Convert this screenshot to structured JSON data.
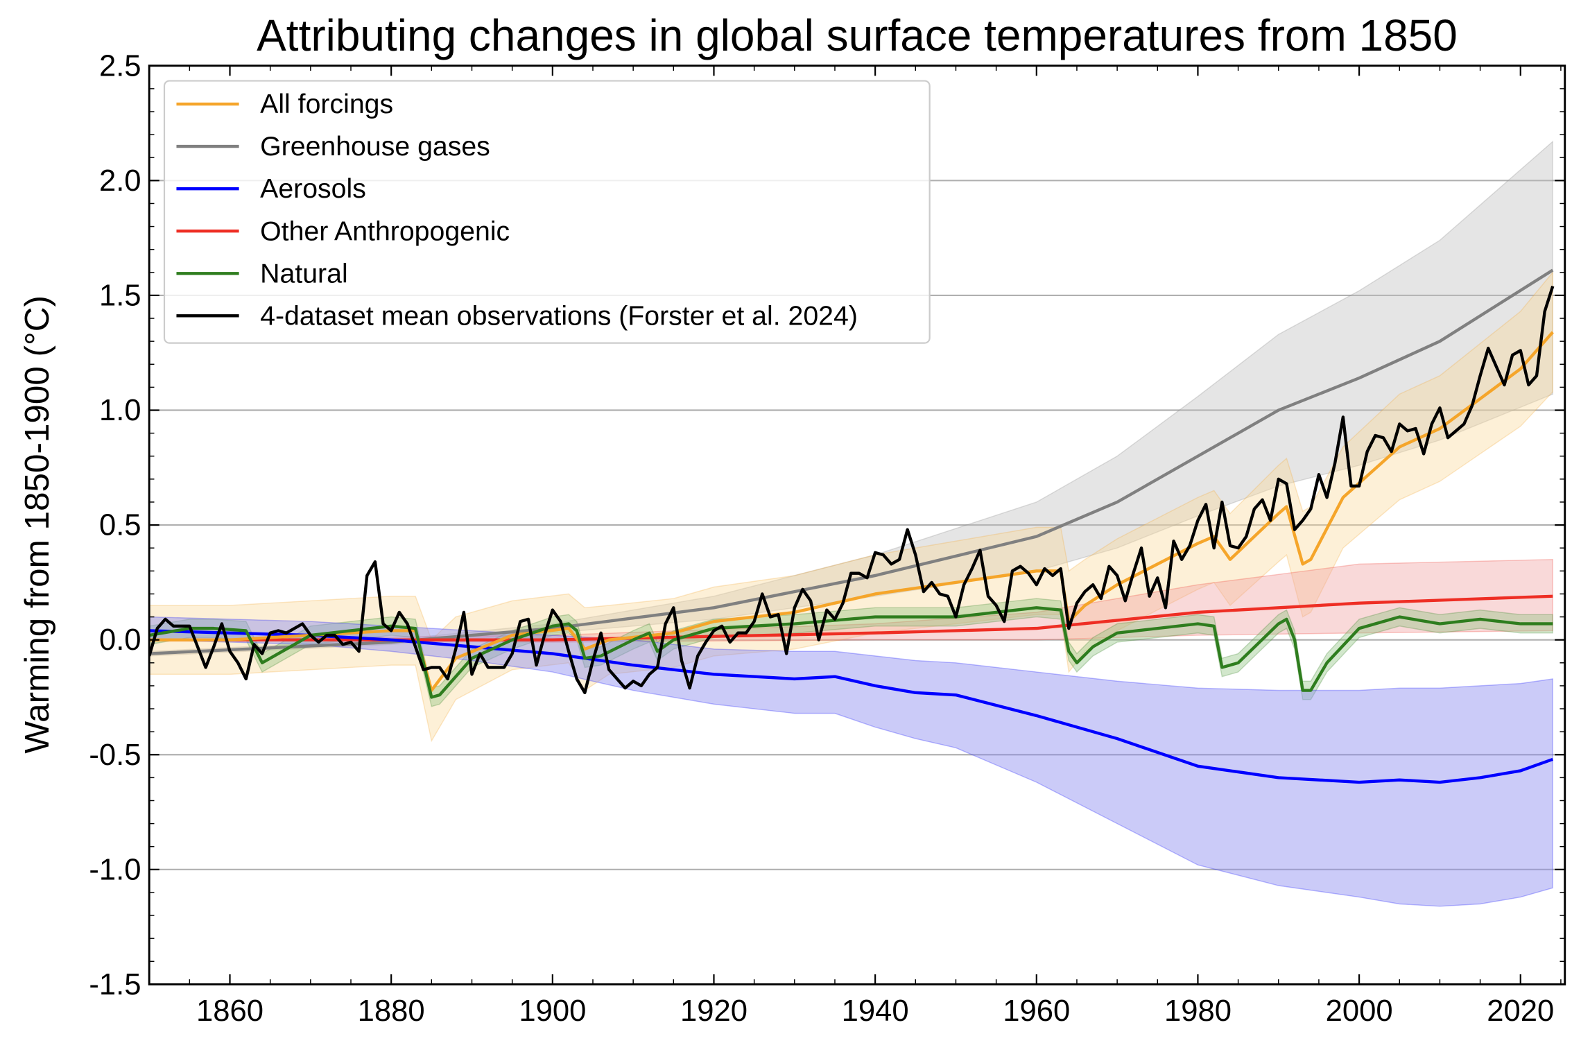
{
  "chart_data": {
    "type": "line",
    "title": "Attributing changes in global surface temperatures from 1850",
    "xlabel": "",
    "ylabel": "Warming from 1850-1900  (°C)",
    "xlim": [
      1850,
      2025.5
    ],
    "ylim": [
      -1.5,
      2.5
    ],
    "xticks": [
      1860,
      1880,
      1900,
      1920,
      1940,
      1960,
      1980,
      2000,
      2020
    ],
    "yticks": [
      "-1.5",
      "-1.0",
      "-0.5",
      "0.0",
      "0.5",
      "1.0",
      "1.5",
      "2.0",
      "2.5"
    ],
    "grid": "horizontal at major y ticks",
    "legend_position": "top-left",
    "series": [
      {
        "name": "All forcings",
        "color": "#f5a52a",
        "band_color": "#f9d99a",
        "years": [
          1850,
          1860,
          1870,
          1880,
          1883,
          1885,
          1888,
          1895,
          1902,
          1904,
          1907,
          1915,
          1920,
          1930,
          1940,
          1950,
          1960,
          1963,
          1964,
          1966,
          1970,
          1980,
          1982,
          1984,
          1990,
          1991,
          1993,
          1994,
          1998,
          2005,
          2010,
          2015,
          2020,
          2024
        ],
        "values": [
          0.0,
          0.0,
          0.02,
          0.04,
          0.04,
          -0.22,
          -0.08,
          0.02,
          0.05,
          -0.04,
          0.0,
          0.03,
          0.08,
          0.12,
          0.2,
          0.25,
          0.3,
          0.3,
          0.08,
          0.15,
          0.24,
          0.42,
          0.45,
          0.35,
          0.55,
          0.58,
          0.33,
          0.35,
          0.62,
          0.84,
          0.92,
          1.05,
          1.18,
          1.34
        ],
        "lower": [
          -0.15,
          -0.15,
          -0.13,
          -0.11,
          -0.11,
          -0.44,
          -0.26,
          -0.13,
          -0.1,
          -0.22,
          -0.15,
          -0.12,
          -0.07,
          -0.04,
          0.03,
          0.07,
          0.11,
          0.11,
          -0.14,
          -0.05,
          0.04,
          0.22,
          0.25,
          0.15,
          0.34,
          0.37,
          0.1,
          0.12,
          0.4,
          0.61,
          0.69,
          0.81,
          0.93,
          1.08
        ],
        "upper": [
          0.15,
          0.15,
          0.17,
          0.19,
          0.19,
          0.0,
          0.1,
          0.17,
          0.2,
          0.14,
          0.15,
          0.18,
          0.23,
          0.28,
          0.37,
          0.43,
          0.49,
          0.49,
          0.3,
          0.35,
          0.44,
          0.62,
          0.65,
          0.55,
          0.76,
          0.79,
          0.56,
          0.58,
          0.84,
          1.07,
          1.15,
          1.29,
          1.43,
          1.6
        ]
      },
      {
        "name": "Greenhouse gases",
        "color": "#808080",
        "band_color": "#bdbdbd",
        "years": [
          1850,
          1880,
          1900,
          1920,
          1940,
          1960,
          1970,
          1980,
          1990,
          2000,
          2010,
          2024
        ],
        "values": [
          -0.06,
          -0.01,
          0.05,
          0.14,
          0.28,
          0.45,
          0.6,
          0.8,
          1.0,
          1.14,
          1.3,
          1.61
        ],
        "lower": [
          -0.07,
          -0.02,
          0.03,
          0.09,
          0.19,
          0.3,
          0.4,
          0.54,
          0.67,
          0.76,
          0.87,
          1.07
        ],
        "upper": [
          -0.05,
          0.0,
          0.07,
          0.19,
          0.37,
          0.6,
          0.8,
          1.06,
          1.33,
          1.52,
          1.74,
          2.17
        ]
      },
      {
        "name": "Aerosols",
        "color": "#0000ff",
        "band_color": "#8c8cf0",
        "years": [
          1850,
          1870,
          1880,
          1890,
          1900,
          1910,
          1920,
          1930,
          1935,
          1940,
          1945,
          1950,
          1960,
          1970,
          1980,
          1990,
          2000,
          2005,
          2010,
          2015,
          2020,
          2024
        ],
        "values": [
          0.04,
          0.02,
          0.0,
          -0.03,
          -0.06,
          -0.11,
          -0.15,
          -0.17,
          -0.16,
          -0.2,
          -0.23,
          -0.24,
          -0.33,
          -0.43,
          -0.55,
          -0.6,
          -0.62,
          -0.61,
          -0.62,
          -0.6,
          -0.57,
          -0.52
        ],
        "lower": [
          0.0,
          -0.02,
          -0.05,
          -0.09,
          -0.14,
          -0.22,
          -0.28,
          -0.32,
          -0.32,
          -0.38,
          -0.43,
          -0.47,
          -0.62,
          -0.8,
          -0.98,
          -1.07,
          -1.12,
          -1.15,
          -1.16,
          -1.15,
          -1.12,
          -1.08
        ],
        "upper": [
          0.1,
          0.08,
          0.06,
          0.04,
          0.02,
          0.0,
          -0.04,
          -0.05,
          -0.05,
          -0.07,
          -0.09,
          -0.1,
          -0.14,
          -0.18,
          -0.21,
          -0.22,
          -0.22,
          -0.21,
          -0.21,
          -0.2,
          -0.19,
          -0.17
        ]
      },
      {
        "name": "Other Anthropogenic",
        "color": "#ee2e24",
        "band_color": "#f0a0a0",
        "years": [
          1850,
          1900,
          1940,
          1960,
          1980,
          2000,
          2024
        ],
        "values": [
          0.0,
          0.0,
          0.03,
          0.05,
          0.12,
          0.16,
          0.19
        ],
        "lower": [
          0.0,
          -0.01,
          0.0,
          0.0,
          0.02,
          0.03,
          0.04
        ],
        "upper": [
          0.0,
          0.02,
          0.07,
          0.12,
          0.24,
          0.33,
          0.35
        ]
      },
      {
        "name": "Natural",
        "color": "#2e7d1e",
        "band_color": "#8fc27f",
        "years": [
          1850,
          1855,
          1858,
          1862,
          1864,
          1866,
          1870,
          1880,
          1883,
          1885,
          1886,
          1890,
          1895,
          1900,
          1902,
          1903,
          1904,
          1906,
          1910,
          1912,
          1913,
          1915,
          1920,
          1930,
          1940,
          1950,
          1960,
          1963,
          1964,
          1965,
          1967,
          1970,
          1975,
          1980,
          1982,
          1983,
          1985,
          1990,
          1991,
          1992,
          1993,
          1994,
          1996,
          2000,
          2005,
          2010,
          2015,
          2020,
          2024
        ],
        "values": [
          0.02,
          0.05,
          0.05,
          0.04,
          -0.1,
          -0.06,
          0.02,
          0.06,
          0.05,
          -0.25,
          -0.24,
          -0.08,
          0.0,
          0.06,
          0.07,
          0.04,
          -0.08,
          -0.07,
          0.0,
          0.03,
          -0.05,
          0.0,
          0.05,
          0.07,
          0.1,
          0.1,
          0.14,
          0.13,
          -0.05,
          -0.1,
          -0.03,
          0.03,
          0.05,
          0.07,
          0.06,
          -0.12,
          -0.1,
          0.07,
          0.09,
          0.0,
          -0.22,
          -0.22,
          -0.1,
          0.05,
          0.1,
          0.07,
          0.09,
          0.07,
          0.07
        ],
        "uncertainty_halfwidth": 0.04
      },
      {
        "name": "4-dataset mean observations (Forster et al. 2024)",
        "color": "#000000",
        "start_year": 1850,
        "values": [
          -0.07,
          0.05,
          0.09,
          0.06,
          0.06,
          0.06,
          -0.03,
          -0.12,
          -0.03,
          0.07,
          -0.05,
          -0.1,
          -0.17,
          -0.02,
          -0.06,
          0.03,
          0.04,
          0.03,
          0.05,
          0.07,
          0.02,
          -0.01,
          0.02,
          0.02,
          -0.02,
          -0.01,
          -0.05,
          0.28,
          0.34,
          0.07,
          0.04,
          0.12,
          0.07,
          -0.03,
          -0.13,
          -0.12,
          -0.12,
          -0.17,
          -0.04,
          0.12,
          -0.15,
          -0.06,
          -0.12,
          -0.12,
          -0.12,
          -0.06,
          0.08,
          0.09,
          -0.11,
          0.02,
          0.13,
          0.08,
          -0.05,
          -0.17,
          -0.23,
          -0.09,
          0.03,
          -0.13,
          -0.17,
          -0.21,
          -0.18,
          -0.2,
          -0.15,
          -0.12,
          0.07,
          0.14,
          -0.09,
          -0.21,
          -0.07,
          -0.01,
          0.04,
          0.06,
          -0.01,
          0.03,
          0.03,
          0.08,
          0.2,
          0.1,
          0.11,
          -0.06,
          0.14,
          0.22,
          0.17,
          0.0,
          0.13,
          0.09,
          0.16,
          0.29,
          0.29,
          0.27,
          0.38,
          0.37,
          0.33,
          0.35,
          0.48,
          0.37,
          0.21,
          0.25,
          0.2,
          0.19,
          0.1,
          0.24,
          0.31,
          0.39,
          0.19,
          0.15,
          0.08,
          0.3,
          0.32,
          0.29,
          0.24,
          0.31,
          0.28,
          0.31,
          0.05,
          0.16,
          0.21,
          0.24,
          0.18,
          0.32,
          0.28,
          0.17,
          0.29,
          0.4,
          0.19,
          0.27,
          0.14,
          0.43,
          0.35,
          0.41,
          0.52,
          0.59,
          0.4,
          0.6,
          0.41,
          0.4,
          0.45,
          0.57,
          0.61,
          0.52,
          0.7,
          0.68,
          0.48,
          0.52,
          0.57,
          0.72,
          0.62,
          0.77,
          0.97,
          0.67,
          0.67,
          0.82,
          0.89,
          0.88,
          0.82,
          0.94,
          0.91,
          0.92,
          0.81,
          0.94,
          1.01,
          0.88,
          0.91,
          0.94,
          1.02,
          1.15,
          1.27,
          1.19,
          1.11,
          1.24,
          1.26,
          1.11,
          1.15,
          1.43,
          1.54
        ]
      }
    ]
  }
}
